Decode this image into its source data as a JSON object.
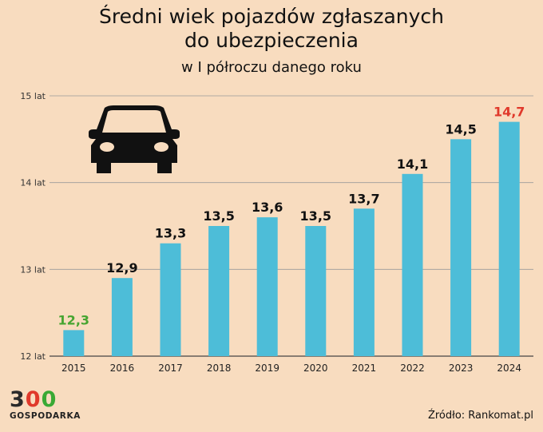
{
  "chart_data": {
    "type": "bar",
    "title_line1": "Średni wiek pojazdów zgłaszanych",
    "title_line2": "do ubezpieczenia",
    "subtitle": "w I półroczu danego roku",
    "categories": [
      "2015",
      "2016",
      "2017",
      "2018",
      "2019",
      "2020",
      "2021",
      "2022",
      "2023",
      "2024"
    ],
    "values": [
      12.3,
      12.9,
      13.3,
      13.5,
      13.6,
      13.5,
      13.7,
      14.1,
      14.5,
      14.7
    ],
    "value_labels": [
      "12,3",
      "12,9",
      "13,3",
      "13,5",
      "13,6",
      "13,5",
      "13,7",
      "14,1",
      "14,5",
      "14,7"
    ],
    "ylim": [
      12,
      15
    ],
    "yticks": [
      12,
      13,
      14,
      15
    ],
    "ytick_labels": [
      "12 lat",
      "13 lat",
      "14 lat",
      "15 lat"
    ],
    "xlabel": "",
    "ylabel": "",
    "grid": true,
    "bar_color": "#4dbdd8",
    "label_colors": {
      "min": "#47a531",
      "max": "#e0392b",
      "default": "#111111"
    }
  },
  "branding": {
    "logo_digit1": "3",
    "logo_digit2": "0",
    "logo_digit3": "0",
    "logo_text": "GOSPODARKA",
    "source": "Źródło: Rankomat.pl"
  },
  "icon": "car-icon"
}
